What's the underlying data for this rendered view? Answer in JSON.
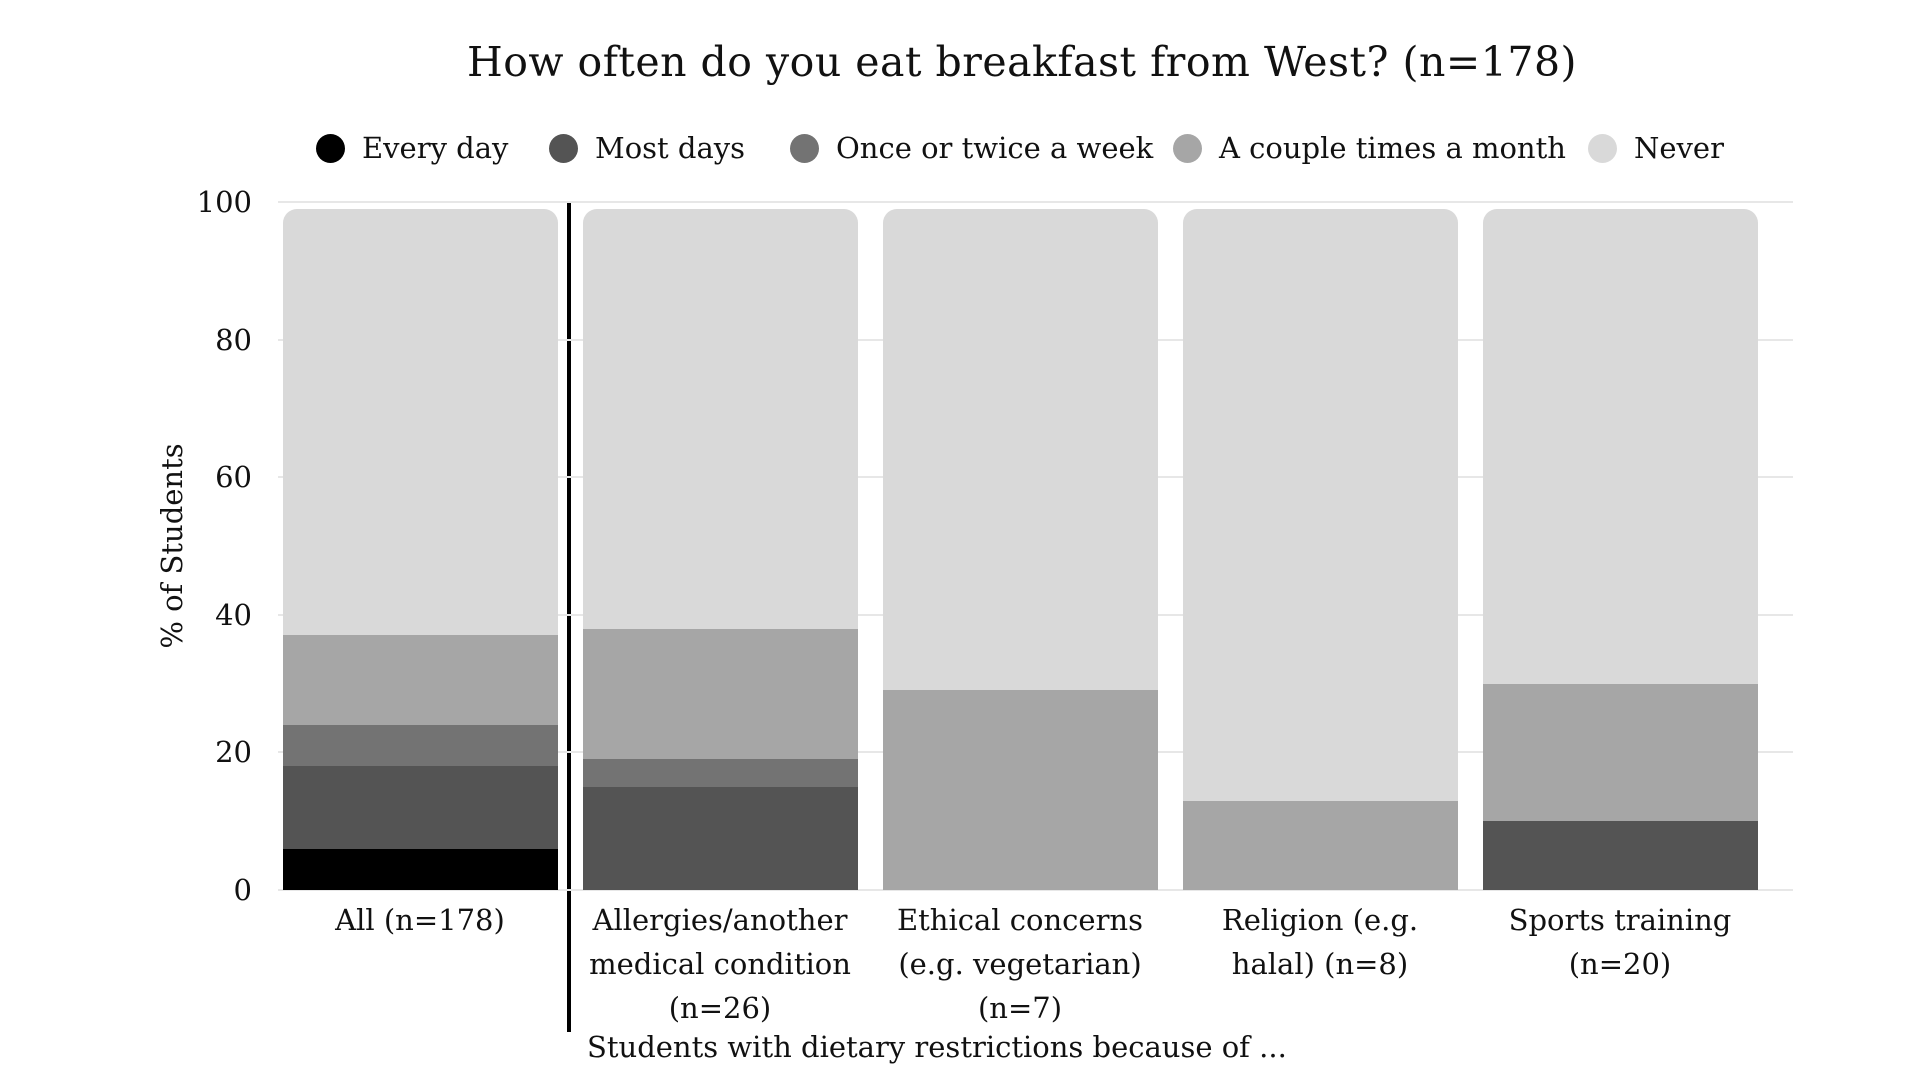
{
  "chart_data": {
    "type": "bar",
    "stacked": true,
    "orientation": "vertical",
    "title": "How often do you eat breakfast from West? (n=178)",
    "ylabel": "% of Students",
    "xlabel": "Students with dietary restrictions because of ...",
    "ylim": [
      0,
      100
    ],
    "yticks": [
      0,
      20,
      40,
      60,
      80,
      100
    ],
    "grid": true,
    "legend_position": "top",
    "categories": [
      "All (n=178)",
      "Allergies/another medical condition (n=26)",
      "Ethical concerns (e.g. vegetarian) (n=7)",
      "Religion (e.g. halal) (n=8)",
      "Sports training (n=20)"
    ],
    "category_label_lines": [
      [
        "All (n=178)"
      ],
      [
        "Allergies/another",
        "medical condition",
        "(n=26)"
      ],
      [
        "Ethical concerns",
        "(e.g. vegetarian)",
        "(n=7)"
      ],
      [
        "Religion (e.g.",
        "halal) (n=8)"
      ],
      [
        "Sports training",
        "(n=20)"
      ]
    ],
    "series": [
      {
        "name": "Every day",
        "color": "#000000",
        "values": [
          6,
          0,
          0,
          0,
          0
        ]
      },
      {
        "name": "Most days",
        "color": "#545454",
        "values": [
          12,
          15,
          0,
          0,
          10
        ]
      },
      {
        "name": "Once or twice a week",
        "color": "#737373",
        "values": [
          6,
          4,
          0,
          0,
          0
        ]
      },
      {
        "name": "A couple times a month",
        "color": "#a6a6a6",
        "values": [
          13,
          19,
          29,
          13,
          20
        ]
      },
      {
        "name": "Never",
        "color": "#d9d9d9",
        "values": [
          62,
          62,
          71,
          87,
          70
        ]
      }
    ],
    "annotations": {
      "divider_after_category": "All (n=178)"
    },
    "colors": {
      "background": "#ffffff",
      "gridline": "#e7e7e7",
      "text": "#111111",
      "divider": "#000000"
    }
  }
}
